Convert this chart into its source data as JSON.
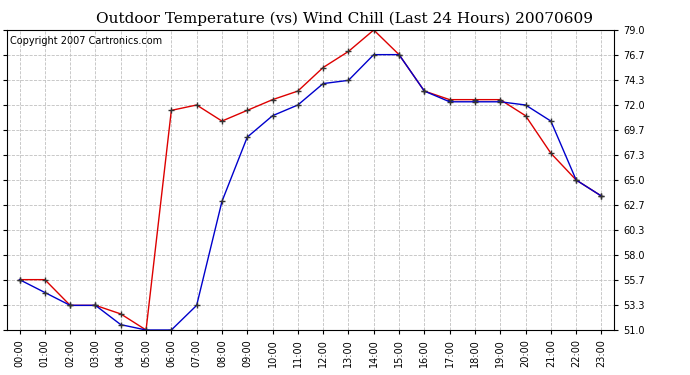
{
  "title": "Outdoor Temperature (vs) Wind Chill (Last 24 Hours) 20070609",
  "copyright": "Copyright 2007 Cartronics.com",
  "hours": [
    "00:00",
    "01:00",
    "02:00",
    "03:00",
    "04:00",
    "05:00",
    "06:00",
    "07:00",
    "08:00",
    "09:00",
    "10:00",
    "11:00",
    "12:00",
    "13:00",
    "14:00",
    "15:00",
    "16:00",
    "17:00",
    "18:00",
    "19:00",
    "20:00",
    "21:00",
    "22:00",
    "23:00"
  ],
  "temp": [
    55.7,
    55.7,
    53.3,
    53.3,
    52.5,
    51.0,
    71.5,
    72.0,
    70.5,
    71.5,
    72.5,
    73.3,
    75.5,
    77.0,
    79.0,
    76.7,
    73.3,
    72.5,
    72.5,
    72.5,
    71.0,
    67.5,
    65.0,
    63.5
  ],
  "windchill": [
    55.7,
    54.5,
    53.3,
    53.3,
    51.5,
    51.0,
    51.0,
    53.3,
    63.0,
    69.0,
    71.0,
    72.0,
    74.0,
    74.3,
    76.7,
    76.7,
    73.3,
    72.3,
    72.3,
    72.3,
    72.0,
    70.5,
    65.0,
    63.5
  ],
  "temp_color": "#dd0000",
  "windchill_color": "#0000cc",
  "ylim": [
    51.0,
    79.0
  ],
  "yticks": [
    51.0,
    53.3,
    55.7,
    58.0,
    60.3,
    62.7,
    65.0,
    67.3,
    69.7,
    72.0,
    74.3,
    76.7,
    79.0
  ],
  "bg_color": "#ffffff",
  "grid_color": "#c0c0c0",
  "title_fontsize": 11,
  "axis_label_fontsize": 7,
  "copyright_fontsize": 7
}
